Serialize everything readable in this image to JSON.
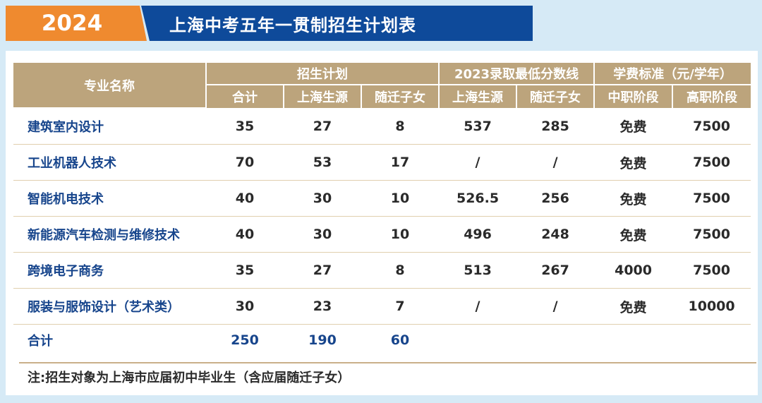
{
  "banner": {
    "year": "2024",
    "title": "上海中考五年一贯制招生计划表"
  },
  "table": {
    "header": {
      "major_name": "专业名称",
      "groups": {
        "plan": "招生计划",
        "score": "2023录取最低分数线",
        "fee": "学费标准（元/学年）"
      },
      "sub": [
        "合计",
        "上海生源",
        "随迁子女",
        "上海生源",
        "随迁子女",
        "中职阶段",
        "高职阶段"
      ]
    },
    "rows": [
      {
        "name": "建筑室内设计",
        "total": "35",
        "sh": "27",
        "mig": "8",
        "score_sh": "537",
        "score_mig": "285",
        "fee_mid": "免费",
        "fee_high": "7500"
      },
      {
        "name": "工业机器人技术",
        "total": "70",
        "sh": "53",
        "mig": "17",
        "score_sh": "/",
        "score_mig": "/",
        "fee_mid": "免费",
        "fee_high": "7500"
      },
      {
        "name": "智能机电技术",
        "total": "40",
        "sh": "30",
        "mig": "10",
        "score_sh": "526.5",
        "score_mig": "256",
        "fee_mid": "免费",
        "fee_high": "7500"
      },
      {
        "name": "新能源汽车检测与维修技术",
        "total": "40",
        "sh": "30",
        "mig": "10",
        "score_sh": "496",
        "score_mig": "248",
        "fee_mid": "免费",
        "fee_high": "7500"
      },
      {
        "name": "跨境电子商务",
        "total": "35",
        "sh": "27",
        "mig": "8",
        "score_sh": "513",
        "score_mig": "267",
        "fee_mid": "4000",
        "fee_high": "7500"
      },
      {
        "name": "服装与服饰设计（艺术类）",
        "total": "30",
        "sh": "23",
        "mig": "7",
        "score_sh": "/",
        "score_mig": "/",
        "fee_mid": "免费",
        "fee_high": "10000"
      }
    ],
    "total_row": {
      "name": "合计",
      "total": "250",
      "sh": "190",
      "mig": "60"
    }
  },
  "note": "注:招生对象为上海市应届初中毕业生（含应届随迁子女）"
}
